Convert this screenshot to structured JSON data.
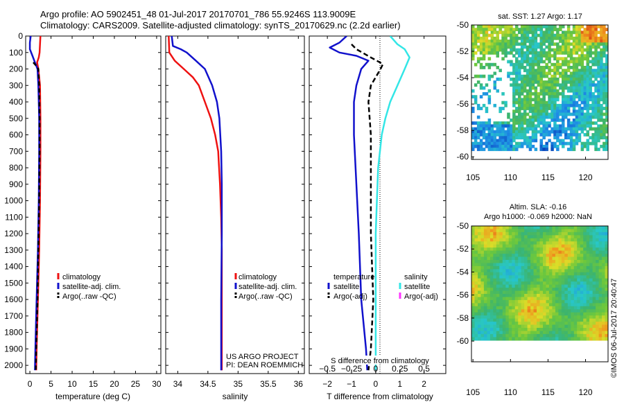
{
  "header": {
    "line1": "Argo profile: AO 5902451_48 01-Jul-2017 20170701_786 55.9246S 113.9009E",
    "line2": "Climatology: CARS2009. Satellite-adjusted climatology: synTS_20170629.nc (2.2d earlier)"
  },
  "colors": {
    "climatology": "#ee1111",
    "satellite": "#1111cc",
    "argo": "#000000",
    "salinity_satellite": "#33e6e6",
    "salinity_argo": "#ff33ff"
  },
  "chart_data": [
    {
      "id": "temperature",
      "type": "line",
      "xlabel": "temperature (deg C)",
      "ylabel": "",
      "xlim": [
        -1,
        31
      ],
      "ylim": [
        2050,
        0
      ],
      "xticks": [
        0,
        5,
        10,
        15,
        20,
        25,
        30
      ],
      "xtick_labels": [
        "0",
        "5",
        "10",
        "15",
        "20",
        "25",
        "30"
      ],
      "yticks": [
        0,
        100,
        200,
        300,
        400,
        500,
        600,
        700,
        800,
        900,
        1000,
        1100,
        1200,
        1300,
        1400,
        1500,
        1600,
        1700,
        1800,
        1900,
        2000
      ],
      "ytick_labels": [
        "0",
        "100",
        "200",
        "300",
        "400",
        "500",
        "600",
        "700",
        "800",
        "900",
        "1000",
        "1100",
        "1200",
        "1300",
        "1400",
        "1500",
        "1600",
        "1700",
        "1800",
        "1900",
        "2000"
      ],
      "legend": [
        "climatology",
        "satellite-adj. clim.",
        "Argo(..raw -QC)"
      ],
      "series": [
        {
          "name": "climatology",
          "color": "#ee1111",
          "width": 2.5,
          "dash": "",
          "points": [
            [
              2.5,
              0
            ],
            [
              2.4,
              50
            ],
            [
              2.3,
              100
            ],
            [
              2.1,
              130
            ],
            [
              1.7,
              160
            ],
            [
              2.0,
              200
            ],
            [
              2.4,
              300
            ],
            [
              2.5,
              500
            ],
            [
              2.5,
              700
            ],
            [
              2.4,
              1000
            ],
            [
              2.2,
              1300
            ],
            [
              1.9,
              1600
            ],
            [
              1.6,
              1900
            ],
            [
              1.5,
              2030
            ]
          ]
        },
        {
          "name": "satellite-adj. clim.",
          "color": "#1111cc",
          "width": 2.5,
          "dash": "",
          "points": [
            [
              0.2,
              0
            ],
            [
              0.0,
              40
            ],
            [
              0.0,
              80
            ],
            [
              0.6,
              120
            ],
            [
              1.2,
              160
            ],
            [
              1.8,
              200
            ],
            [
              2.0,
              300
            ],
            [
              2.2,
              500
            ],
            [
              2.2,
              700
            ],
            [
              2.1,
              1000
            ],
            [
              1.9,
              1300
            ],
            [
              1.6,
              1600
            ],
            [
              1.3,
              1900
            ],
            [
              1.2,
              2030
            ]
          ]
        },
        {
          "name": "Argo(..raw -QC)",
          "color": "#000000",
          "width": 2.5,
          "dash": "6,4",
          "points": [
            [
              0.8,
              160
            ],
            [
              1.5,
              180
            ],
            [
              2.0,
              200
            ],
            [
              2.2,
              300
            ],
            [
              2.3,
              500
            ],
            [
              2.3,
              700
            ],
            [
              2.2,
              1000
            ],
            [
              2.0,
              1300
            ],
            [
              1.8,
              1600
            ],
            [
              1.5,
              1900
            ],
            [
              1.4,
              2030
            ]
          ]
        }
      ]
    },
    {
      "id": "salinity",
      "type": "line",
      "xlabel": "salinity",
      "ylabel": "",
      "xlim": [
        33.8,
        36.1
      ],
      "ylim": [
        2050,
        0
      ],
      "xticks": [
        34,
        34.5,
        35,
        35.5,
        36
      ],
      "xtick_labels": [
        "34",
        "34.5",
        "35",
        "35.5",
        "36"
      ],
      "legend": [
        "climatology",
        "satellite-adj. clim.",
        "Argo(..raw -QC)"
      ],
      "annotation": [
        "US ARGO PROJECT",
        "PI: DEAN ROEMMICH"
      ],
      "series": [
        {
          "name": "climatology",
          "color": "#ee1111",
          "width": 2.5,
          "dash": "",
          "points": [
            [
              33.85,
              0
            ],
            [
              33.86,
              100
            ],
            [
              33.95,
              150
            ],
            [
              34.1,
              200
            ],
            [
              34.25,
              250
            ],
            [
              34.35,
              300
            ],
            [
              34.45,
              400
            ],
            [
              34.55,
              500
            ],
            [
              34.62,
              600
            ],
            [
              34.67,
              700
            ],
            [
              34.7,
              900
            ],
            [
              34.72,
              1100
            ],
            [
              34.73,
              1300
            ],
            [
              34.73,
              1600
            ],
            [
              34.73,
              1900
            ],
            [
              34.73,
              2030
            ]
          ]
        },
        {
          "name": "satellite-adj. clim.",
          "color": "#1111cc",
          "width": 2.5,
          "dash": "",
          "points": [
            [
              33.9,
              0
            ],
            [
              33.92,
              60
            ],
            [
              34.05,
              80
            ],
            [
              34.15,
              100
            ],
            [
              34.3,
              150
            ],
            [
              34.45,
              200
            ],
            [
              34.57,
              300
            ],
            [
              34.65,
              400
            ],
            [
              34.69,
              500
            ],
            [
              34.72,
              700
            ],
            [
              34.73,
              900
            ],
            [
              34.73,
              1200
            ],
            [
              34.72,
              1600
            ],
            [
              34.72,
              1900
            ],
            [
              34.72,
              2030
            ]
          ]
        }
      ]
    },
    {
      "id": "difference",
      "type": "line",
      "xlabel": "T difference from climatology",
      "ylabel": "",
      "xlim": [
        -2.75,
        2.9
      ],
      "ylim": [
        2050,
        0
      ],
      "xticks": [
        -2,
        -1,
        0,
        1,
        2
      ],
      "xtick_labels": [
        "−2",
        "−1",
        "0",
        "1",
        "2"
      ],
      "top_axis_label": "S difference from climatology",
      "s_ticks": [
        -0.5,
        -0.25,
        0,
        0.25,
        0.5
      ],
      "s_tick_labels": [
        "−0.5",
        "−0.25",
        "0",
        "0.25",
        "0.5"
      ],
      "s_scale": 4,
      "legend_titles": [
        "temperature",
        "salinity"
      ],
      "legend_left": [
        "satellite",
        "Argo(-adj)"
      ],
      "legend_right": [
        "satellite",
        "Argo(-adj)"
      ],
      "series": [
        {
          "name": "T satellite",
          "color": "#1111cc",
          "width": 2.5,
          "dash": "",
          "points": [
            [
              -1.2,
              0
            ],
            [
              -1.5,
              40
            ],
            [
              -1.9,
              70
            ],
            [
              -1.5,
              100
            ],
            [
              -0.8,
              120
            ],
            [
              -0.3,
              150
            ],
            [
              -0.6,
              200
            ],
            [
              -0.8,
              300
            ],
            [
              -0.9,
              400
            ],
            [
              -0.9,
              600
            ],
            [
              -0.8,
              900
            ],
            [
              -0.7,
              1200
            ],
            [
              -0.6,
              1600
            ],
            [
              -0.4,
              1900
            ],
            [
              -0.35,
              2030
            ]
          ]
        },
        {
          "name": "T Argo(-adj)",
          "color": "#000000",
          "width": 2.5,
          "dash": "7,4",
          "points": [
            [
              -1.0,
              50
            ],
            [
              -0.8,
              80
            ],
            [
              -0.2,
              130
            ],
            [
              0.3,
              170
            ],
            [
              0.2,
              200
            ],
            [
              -0.2,
              300
            ],
            [
              -0.3,
              400
            ],
            [
              -0.2,
              600
            ],
            [
              -0.2,
              900
            ],
            [
              -0.2,
              1200
            ],
            [
              -0.1,
              1600
            ],
            [
              -0.2,
              1900
            ],
            [
              -0.3,
              2030
            ]
          ]
        },
        {
          "name": "S satellite",
          "color": "#33e6e6",
          "width": 2.5,
          "dash": "",
          "points": [
            [
              0.6,
              0
            ],
            [
              0.9,
              50
            ],
            [
              1.2,
              80
            ],
            [
              1.4,
              130
            ],
            [
              1.2,
              200
            ],
            [
              0.9,
              300
            ],
            [
              0.6,
              400
            ],
            [
              0.4,
              500
            ],
            [
              0.25,
              600
            ],
            [
              0.1,
              800
            ],
            [
              0.05,
              1000
            ],
            [
              0.0,
              1200
            ],
            [
              0.0,
              1600
            ],
            [
              0.0,
              1900
            ],
            [
              0.0,
              2030
            ]
          ]
        }
      ]
    },
    {
      "id": "sst_map",
      "type": "heatmap",
      "title": "sat. SST: 1.27  Argo: 1.17",
      "xlim": [
        104.8,
        123
      ],
      "ylim": [
        -50,
        -60.2
      ],
      "xticks": [
        105,
        110,
        115,
        120
      ],
      "xtick_labels": [
        "105",
        "110",
        "115",
        "120"
      ],
      "yticks": [
        -50,
        -52,
        -54,
        -56,
        -58,
        -60
      ],
      "ytick_labels": [
        "-50",
        "-52",
        "-54",
        "-56",
        "-58",
        "-60"
      ]
    },
    {
      "id": "sla_map",
      "type": "heatmap",
      "title": "Altim. SLA: -0.16",
      "subtitle": "Argo h1000: -0.069 h2000: NaN",
      "xlim": [
        104.8,
        123
      ],
      "ylim": [
        -50,
        -61.8
      ],
      "xticks": [
        105,
        110,
        115,
        120
      ],
      "xtick_labels": [
        "105",
        "110",
        "115",
        "120"
      ],
      "yticks": [
        -50,
        -52,
        -54,
        -56,
        -58,
        -60
      ],
      "ytick_labels": [
        "-50",
        "-52",
        "-54",
        "-56",
        "-58",
        "-60"
      ]
    }
  ],
  "watermark": "©IMOS 06-Jul-2017 20:40:47"
}
